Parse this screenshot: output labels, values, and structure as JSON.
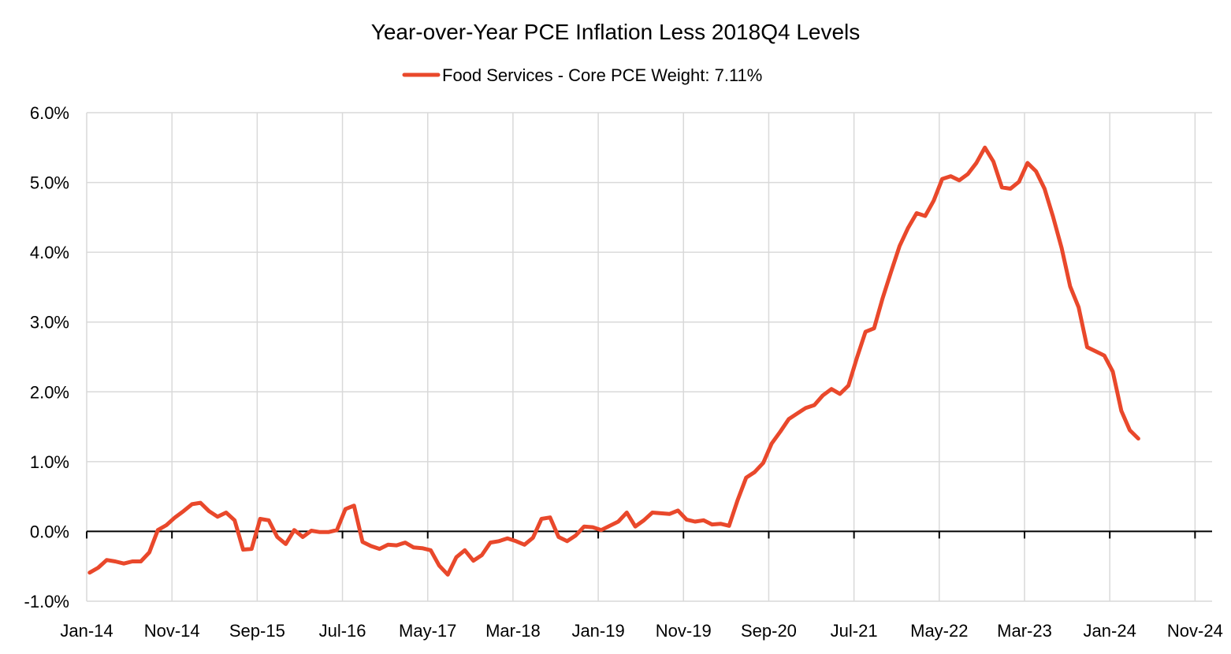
{
  "colors": {
    "background": "#FFFFFF",
    "grid": "#D9D9D9",
    "axis": "#000000",
    "text": "#000000"
  },
  "chart_data": {
    "type": "line",
    "title": "Year-over-Year PCE Inflation Less 2018Q4 Levels",
    "xlabel": "",
    "ylabel": "",
    "grid": true,
    "legend_position": "top",
    "xlim": [
      0,
      132
    ],
    "ylim": [
      -1.0,
      6.0
    ],
    "x_ticks": [
      {
        "label": "Jan-14",
        "x": 0
      },
      {
        "label": "Nov-14",
        "x": 10
      },
      {
        "label": "Sep-15",
        "x": 20
      },
      {
        "label": "Jul-16",
        "x": 30
      },
      {
        "label": "May-17",
        "x": 40
      },
      {
        "label": "Mar-18",
        "x": 50
      },
      {
        "label": "Jan-19",
        "x": 60
      },
      {
        "label": "Nov-19",
        "x": 70
      },
      {
        "label": "Sep-20",
        "x": 80
      },
      {
        "label": "Jul-21",
        "x": 90
      },
      {
        "label": "May-22",
        "x": 100
      },
      {
        "label": "Mar-23",
        "x": 110
      },
      {
        "label": "Jan-24",
        "x": 120
      },
      {
        "label": "Nov-24",
        "x": 130
      }
    ],
    "y_ticks": [
      {
        "label": "6.0%",
        "value": 6.0
      },
      {
        "label": "5.0%",
        "value": 5.0
      },
      {
        "label": "4.0%",
        "value": 4.0
      },
      {
        "label": "3.0%",
        "value": 3.0
      },
      {
        "label": "2.0%",
        "value": 2.0
      },
      {
        "label": "1.0%",
        "value": 1.0
      },
      {
        "label": "0.0%",
        "value": 0.0
      },
      {
        "label": "-1.0%",
        "value": -1.0
      }
    ],
    "series": [
      {
        "name": "Food Services - Core PCE Weight: 7.11%",
        "color": "#E9482B",
        "x_start": 0,
        "x_step": 1,
        "values": [
          -0.59,
          -0.52,
          -0.41,
          -0.43,
          -0.46,
          -0.43,
          -0.43,
          -0.3,
          0.02,
          0.09,
          0.2,
          0.29,
          0.39,
          0.41,
          0.29,
          0.21,
          0.27,
          0.16,
          -0.26,
          -0.25,
          0.18,
          0.16,
          -0.08,
          -0.18,
          0.02,
          -0.08,
          0.01,
          -0.01,
          -0.01,
          0.02,
          0.32,
          0.37,
          -0.15,
          -0.21,
          -0.25,
          -0.19,
          -0.2,
          -0.16,
          -0.23,
          -0.24,
          -0.27,
          -0.49,
          -0.62,
          -0.37,
          -0.27,
          -0.42,
          -0.34,
          -0.16,
          -0.14,
          -0.1,
          -0.14,
          -0.19,
          -0.09,
          0.18,
          0.2,
          -0.08,
          -0.14,
          -0.06,
          0.07,
          0.06,
          0.02,
          0.08,
          0.14,
          0.27,
          0.07,
          0.16,
          0.27,
          0.26,
          0.25,
          0.3,
          0.17,
          0.14,
          0.16,
          0.1,
          0.11,
          0.08,
          0.45,
          0.77,
          0.85,
          0.98,
          1.26,
          1.43,
          1.61,
          1.69,
          1.77,
          1.81,
          1.95,
          2.04,
          1.97,
          2.09,
          2.49,
          2.86,
          2.91,
          3.34,
          3.72,
          4.09,
          4.35,
          4.56,
          4.52,
          4.74,
          5.05,
          5.09,
          5.03,
          5.12,
          5.28,
          5.5,
          5.3,
          4.93,
          4.91,
          5.01,
          5.28,
          5.16,
          4.91,
          4.51,
          4.06,
          3.51,
          3.21,
          2.64,
          2.58,
          2.52,
          2.29,
          1.73,
          1.45,
          1.33
        ]
      }
    ]
  }
}
